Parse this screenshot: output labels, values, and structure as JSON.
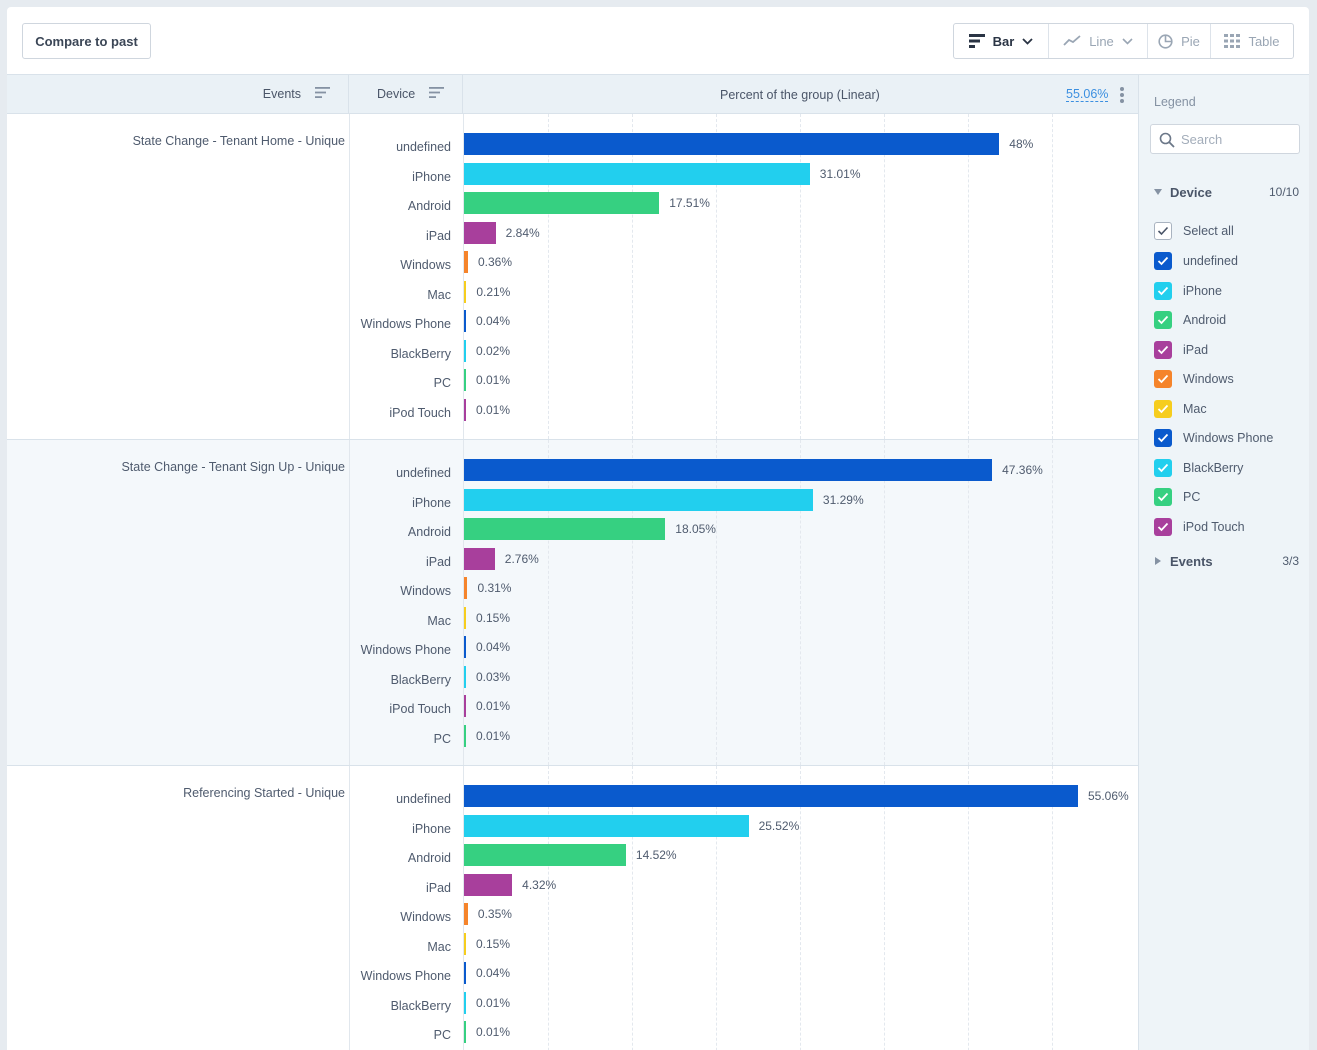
{
  "toolbar": {
    "compare_label": "Compare to past",
    "chart_types": [
      {
        "label": "Bar",
        "icon": "bar-chart-icon",
        "active": true
      },
      {
        "label": "Line",
        "icon": "line-chart-icon",
        "active": false
      },
      {
        "label": "Pie",
        "icon": "pie-chart-icon",
        "active": false
      },
      {
        "label": "Table",
        "icon": "table-grid-icon",
        "active": false
      }
    ]
  },
  "table_header": {
    "events": "Events",
    "device": "Device",
    "percent_title": "Percent of the group (Linear)",
    "max_value": "55.06%"
  },
  "colors": {
    "undefined": "#0a5acd",
    "iPhone": "#22cfee",
    "Android": "#36d081",
    "iPad": "#a83f9c",
    "Windows": "#f5842b",
    "Mac": "#f6cd1e",
    "Windows Phone": "#0a5acd",
    "BlackBerry": "#22cfee",
    "PC": "#36d081",
    "iPod Touch": "#a83f9c"
  },
  "chart_data": {
    "type": "bar",
    "orientation": "horizontal",
    "xlim": [
      0,
      55.06
    ],
    "groups": [
      {
        "event": "State Change - Tenant Home - Unique",
        "rows": [
          {
            "device": "undefined",
            "value": 48,
            "label": "48%"
          },
          {
            "device": "iPhone",
            "value": 31.01,
            "label": "31.01%"
          },
          {
            "device": "Android",
            "value": 17.51,
            "label": "17.51%"
          },
          {
            "device": "iPad",
            "value": 2.84,
            "label": "2.84%"
          },
          {
            "device": "Windows",
            "value": 0.36,
            "label": "0.36%"
          },
          {
            "device": "Mac",
            "value": 0.21,
            "label": "0.21%"
          },
          {
            "device": "Windows Phone",
            "value": 0.04,
            "label": "0.04%"
          },
          {
            "device": "BlackBerry",
            "value": 0.02,
            "label": "0.02%"
          },
          {
            "device": "PC",
            "value": 0.01,
            "label": "0.01%"
          },
          {
            "device": "iPod Touch",
            "value": 0.01,
            "label": "0.01%"
          }
        ]
      },
      {
        "event": "State Change - Tenant Sign Up - Unique",
        "rows": [
          {
            "device": "undefined",
            "value": 47.36,
            "label": "47.36%"
          },
          {
            "device": "iPhone",
            "value": 31.29,
            "label": "31.29%"
          },
          {
            "device": "Android",
            "value": 18.05,
            "label": "18.05%"
          },
          {
            "device": "iPad",
            "value": 2.76,
            "label": "2.76%"
          },
          {
            "device": "Windows",
            "value": 0.31,
            "label": "0.31%"
          },
          {
            "device": "Mac",
            "value": 0.15,
            "label": "0.15%"
          },
          {
            "device": "Windows Phone",
            "value": 0.04,
            "label": "0.04%"
          },
          {
            "device": "BlackBerry",
            "value": 0.03,
            "label": "0.03%"
          },
          {
            "device": "iPod Touch",
            "value": 0.01,
            "label": "0.01%"
          },
          {
            "device": "PC",
            "value": 0.01,
            "label": "0.01%"
          }
        ]
      },
      {
        "event": "Referencing Started - Unique",
        "rows": [
          {
            "device": "undefined",
            "value": 55.06,
            "label": "55.06%"
          },
          {
            "device": "iPhone",
            "value": 25.52,
            "label": "25.52%"
          },
          {
            "device": "Android",
            "value": 14.52,
            "label": "14.52%"
          },
          {
            "device": "iPad",
            "value": 4.32,
            "label": "4.32%"
          },
          {
            "device": "Windows",
            "value": 0.35,
            "label": "0.35%"
          },
          {
            "device": "Mac",
            "value": 0.15,
            "label": "0.15%"
          },
          {
            "device": "Windows Phone",
            "value": 0.04,
            "label": "0.04%"
          },
          {
            "device": "BlackBerry",
            "value": 0.01,
            "label": "0.01%"
          },
          {
            "device": "PC",
            "value": 0.01,
            "label": "0.01%"
          }
        ]
      }
    ]
  },
  "legend": {
    "title": "Legend",
    "search_placeholder": "Search",
    "device_section": {
      "label": "Device",
      "count": "10/10"
    },
    "select_all": "Select all",
    "items": [
      "undefined",
      "iPhone",
      "Android",
      "iPad",
      "Windows",
      "Mac",
      "Windows Phone",
      "BlackBerry",
      "PC",
      "iPod Touch"
    ],
    "events_section": {
      "label": "Events",
      "count": "3/3"
    }
  }
}
